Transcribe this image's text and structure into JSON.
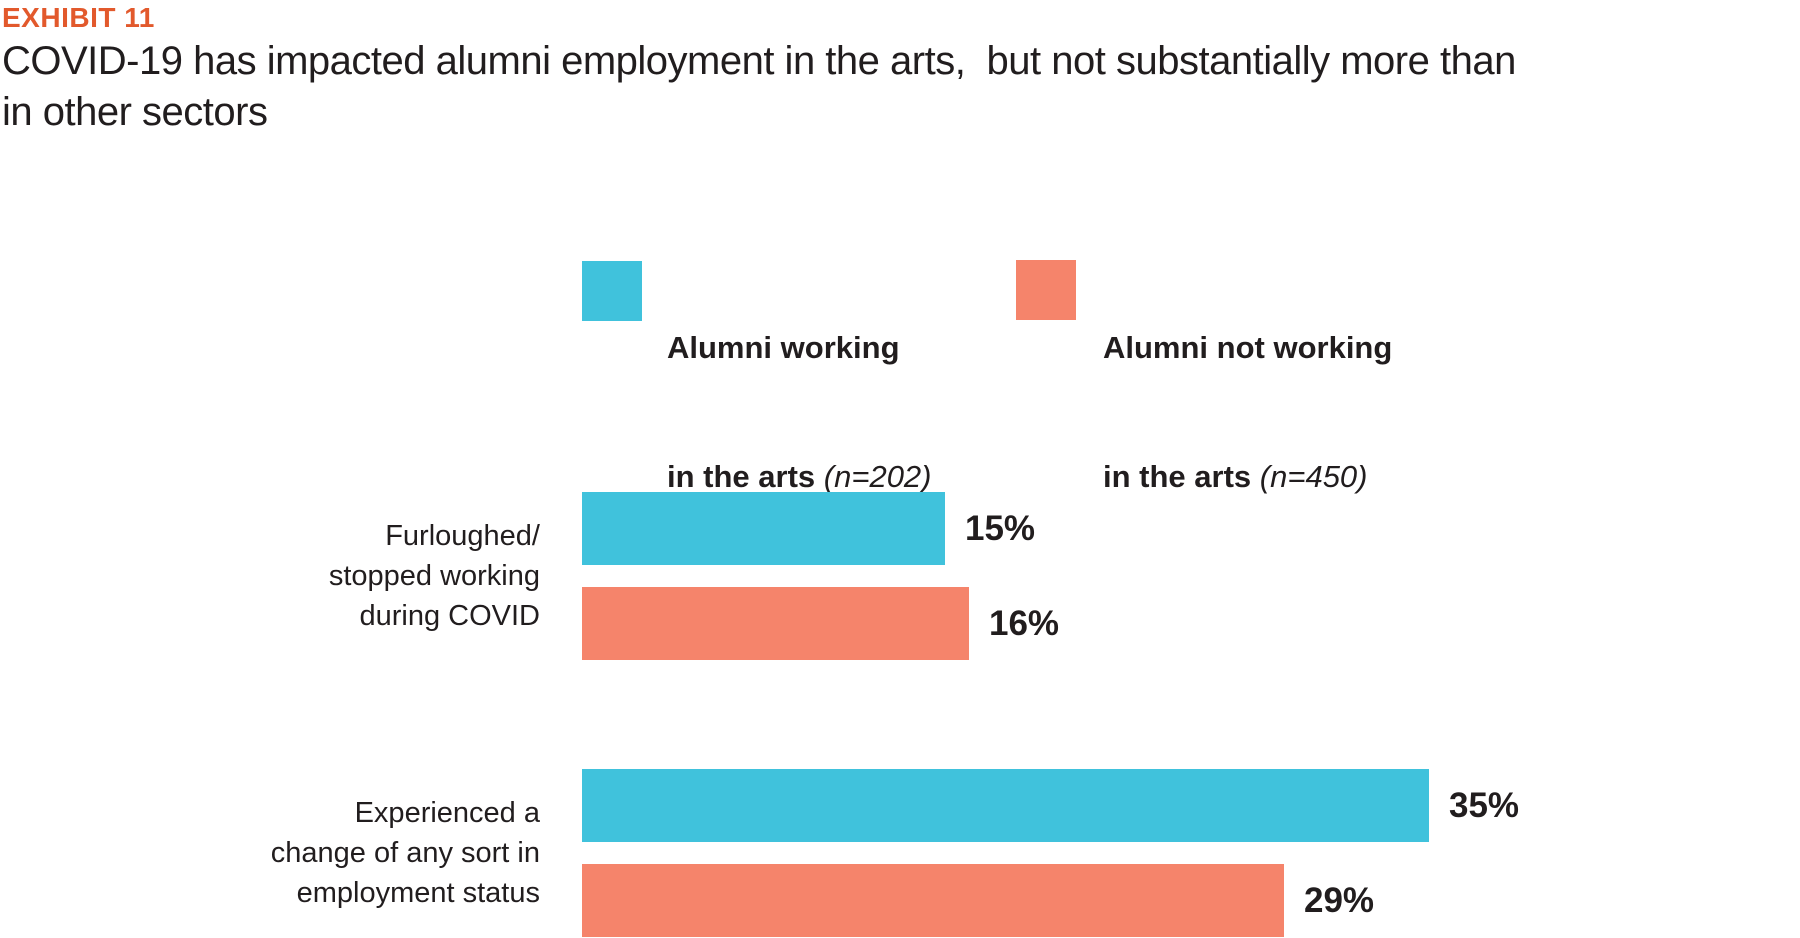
{
  "header": {
    "exhibit_label": "EXHIBIT 11",
    "title_line1": "COVID-19 has impacted alumni employment in the arts,  but not substantially more than",
    "title_line2": "in other sectors"
  },
  "legend": {
    "items": [
      {
        "name_line1": "Alumni working",
        "name_line2": "in the arts",
        "n_label": "(n=202)",
        "color": "#40C2DC"
      },
      {
        "name_line1": "Alumni not working",
        "name_line2": "in the arts",
        "n_label": "(n=450)",
        "color": "#F5846B"
      }
    ]
  },
  "chart_data": {
    "type": "bar",
    "orientation": "horizontal",
    "title": "COVID-19 has impacted alumni employment in the arts, but not substantially more than in other sectors",
    "categories": [
      [
        "Furloughed/",
        "stopped working",
        "during COVID"
      ],
      [
        "Experienced a",
        "change of any sort in",
        "employment status"
      ]
    ],
    "series": [
      {
        "name": "Alumni working in the arts (n=202)",
        "color": "#40C2DC",
        "values": [
          15,
          35
        ]
      },
      {
        "name": "Alumni not working in the arts (n=450)",
        "color": "#F5846B",
        "values": [
          16,
          29
        ]
      }
    ],
    "value_suffix": "%",
    "value_labels": [
      [
        "15%",
        "35%"
      ],
      [
        "16%",
        "29%"
      ]
    ],
    "xlim": [
      0,
      40
    ],
    "grid": false,
    "axis_ticks": "none",
    "legend_position": "top"
  },
  "colors": {
    "accent_orange": "#E2592C",
    "teal": "#40C2DC",
    "coral": "#F5846B",
    "text": "#211D1E",
    "background": "#FFFFFF"
  }
}
